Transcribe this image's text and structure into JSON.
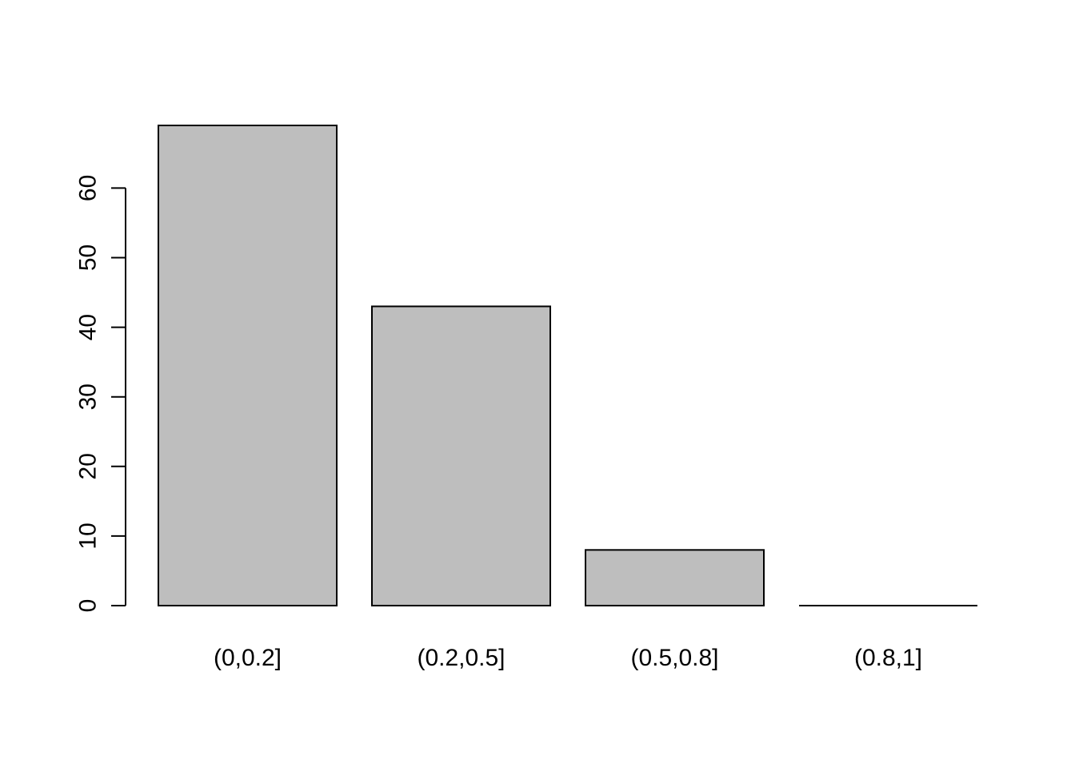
{
  "chart_data": {
    "type": "bar",
    "title": "",
    "xlabel": "",
    "ylabel": "",
    "categories": [
      "(0,0.2]",
      "(0.2,0.5]",
      "(0.5,0.8]",
      "(0.8,1]"
    ],
    "values": [
      69,
      43,
      8,
      0
    ],
    "ylim": [
      0,
      69
    ],
    "yticks": [
      0,
      10,
      20,
      30,
      40,
      50,
      60
    ],
    "grid": false,
    "legend": "none",
    "colors": {
      "bar_fill": "#bebebe",
      "bar_stroke": "#000000",
      "axis": "#000000",
      "text": "#000000"
    }
  }
}
